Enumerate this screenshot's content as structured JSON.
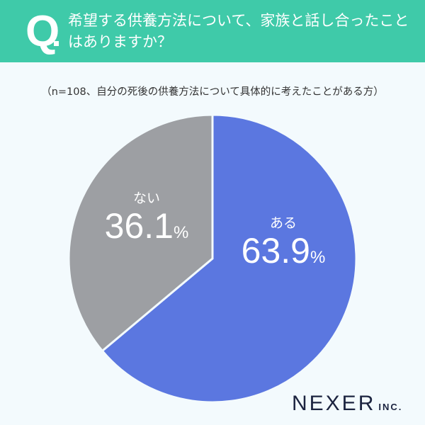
{
  "header": {
    "q_mark": "Q",
    "question": "希望する供養方法について、家族と話し合ったことはありますか？"
  },
  "subtitle": "（n=108、自分の死後の供養方法について具体的に考えたことがある方）",
  "slices": [
    {
      "label": "ある",
      "value": "63.9",
      "unit": "%",
      "color": "#5b77e0"
    },
    {
      "label": "ない",
      "value": "36.1",
      "unit": "%",
      "color": "#9d9fa3"
    }
  ],
  "logo": {
    "main": "NEXER",
    "inc": "INC."
  },
  "chart_data": {
    "type": "pie",
    "title": "希望する供養方法について、家族と話し合ったことはありますか？",
    "subtitle": "（n=108、自分の死後の供養方法について具体的に考えたことがある方）",
    "categories": [
      "ある",
      "ない"
    ],
    "values": [
      63.9,
      36.1
    ],
    "unit": "%",
    "colors": [
      "#5b77e0",
      "#9d9fa3"
    ],
    "n": 108,
    "start_angle": "12 o'clock, clockwise"
  }
}
